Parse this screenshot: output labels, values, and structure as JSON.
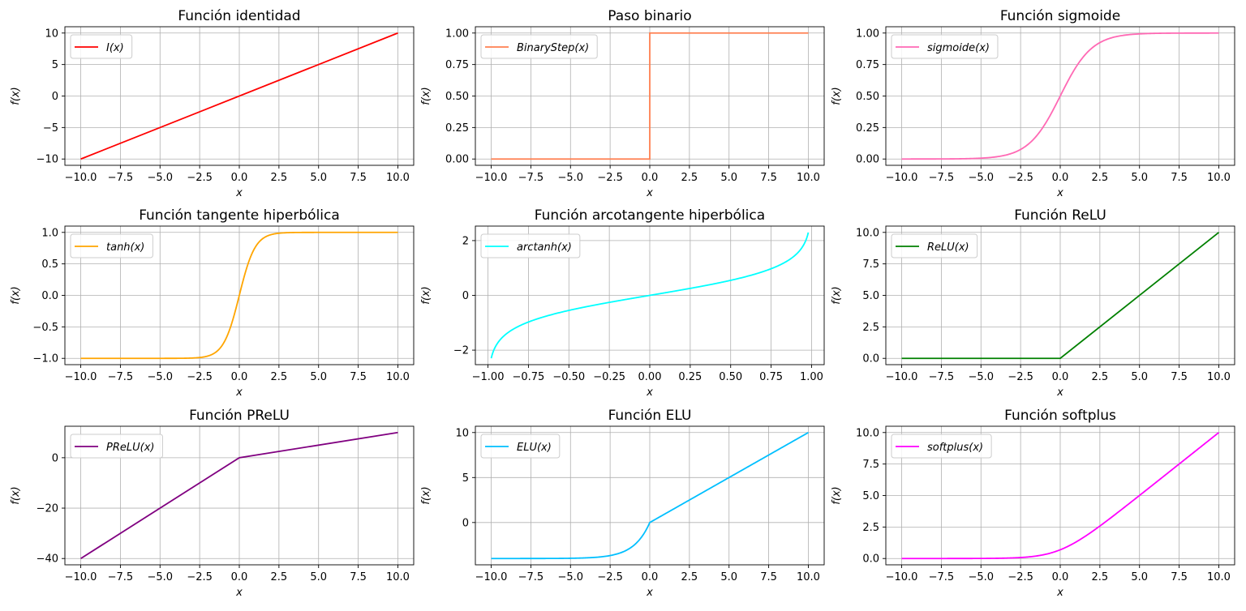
{
  "chart_data": [
    {
      "type": "line",
      "title": "Función identidad",
      "xlabel": "x",
      "ylabel": "f(x)",
      "legend": "I(x)",
      "legend_position": "top-left",
      "grid": true,
      "color": "#ff0000",
      "fn": "identity",
      "xlim": [
        -11,
        11
      ],
      "ylim": [
        -11,
        11
      ],
      "x": [
        -10,
        10
      ],
      "y": [
        -10,
        10
      ],
      "xticks": [
        -10,
        -7.5,
        -5,
        -2.5,
        0,
        2.5,
        5,
        7.5,
        10
      ],
      "xtick_labels": [
        "−10.0",
        "−7.5",
        "−5.0",
        "−2.5",
        "0.0",
        "2.5",
        "5.0",
        "7.5",
        "10.0"
      ],
      "yticks": [
        -10,
        -5,
        0,
        5,
        10
      ],
      "ytick_labels": [
        "−10",
        "−5",
        "0",
        "5",
        "10"
      ]
    },
    {
      "type": "line",
      "title": "Paso binario",
      "xlabel": "x",
      "ylabel": "f(x)",
      "legend": "BinaryStep(x)",
      "legend_position": "top-left",
      "grid": true,
      "color": "#ff7f50",
      "fn": "binarystep",
      "xlim": [
        -11,
        11
      ],
      "ylim": [
        -0.05,
        1.05
      ],
      "x": [
        -10,
        0,
        0,
        10
      ],
      "y": [
        0,
        0,
        1,
        1
      ],
      "xticks": [
        -10,
        -7.5,
        -5,
        -2.5,
        0,
        2.5,
        5,
        7.5,
        10
      ],
      "xtick_labels": [
        "−10.0",
        "−7.5",
        "−5.0",
        "−2.5",
        "0.0",
        "2.5",
        "5.0",
        "7.5",
        "10.0"
      ],
      "yticks": [
        0,
        0.25,
        0.5,
        0.75,
        1
      ],
      "ytick_labels": [
        "0.00",
        "0.25",
        "0.50",
        "0.75",
        "1.00"
      ]
    },
    {
      "type": "line",
      "title": "Función sigmoide",
      "xlabel": "x",
      "ylabel": "f(x)",
      "legend": "sigmoide(x)",
      "legend_position": "top-left",
      "grid": true,
      "color": "#ff69b4",
      "fn": "sigmoid",
      "xlim": [
        -11,
        11
      ],
      "ylim": [
        -0.05,
        1.05
      ],
      "x": [
        -10,
        -5,
        -2.5,
        0,
        2.5,
        5,
        10
      ],
      "y": [
        0,
        0.007,
        0.076,
        0.5,
        0.924,
        0.993,
        1
      ],
      "xticks": [
        -10,
        -7.5,
        -5,
        -2.5,
        0,
        2.5,
        5,
        7.5,
        10
      ],
      "xtick_labels": [
        "−10.0",
        "−7.5",
        "−5.0",
        "−2.5",
        "0.0",
        "2.5",
        "5.0",
        "7.5",
        "10.0"
      ],
      "yticks": [
        0,
        0.25,
        0.5,
        0.75,
        1
      ],
      "ytick_labels": [
        "0.00",
        "0.25",
        "0.50",
        "0.75",
        "1.00"
      ]
    },
    {
      "type": "line",
      "title": "Función tangente hiperbólica",
      "xlabel": "x",
      "ylabel": "f(x)",
      "legend": "tanh(x)",
      "legend_position": "top-left",
      "grid": true,
      "color": "#ffa500",
      "fn": "tanh",
      "xlim": [
        -11,
        11
      ],
      "ylim": [
        -1.1,
        1.1
      ],
      "x": [
        -10,
        -2.5,
        -1,
        0,
        1,
        2.5,
        10
      ],
      "y": [
        -1,
        -0.987,
        -0.762,
        0,
        0.762,
        0.987,
        1
      ],
      "xticks": [
        -10,
        -7.5,
        -5,
        -2.5,
        0,
        2.5,
        5,
        7.5,
        10
      ],
      "xtick_labels": [
        "−10.0",
        "−7.5",
        "−5.0",
        "−2.5",
        "0.0",
        "2.5",
        "5.0",
        "7.5",
        "10.0"
      ],
      "yticks": [
        -1,
        -0.5,
        0,
        0.5,
        1
      ],
      "ytick_labels": [
        "−1.0",
        "−0.5",
        "0.0",
        "0.5",
        "1.0"
      ]
    },
    {
      "type": "line",
      "title": "Función arcotangente hiperbólica",
      "xlabel": "x",
      "ylabel": "f(x)",
      "legend": "arctanh(x)",
      "legend_position": "top-left",
      "grid": true,
      "color": "#00ffff",
      "fn": "arctanh",
      "xlim": [
        -1.078,
        1.078
      ],
      "ylim": [
        -2.53,
        2.53
      ],
      "x": [
        -0.98,
        -0.75,
        -0.5,
        0,
        0.5,
        0.75,
        0.98
      ],
      "y": [
        -2.298,
        -0.973,
        -0.549,
        0,
        0.549,
        0.973,
        2.298
      ],
      "xticks": [
        -1,
        -0.75,
        -0.5,
        -0.25,
        0,
        0.25,
        0.5,
        0.75,
        1
      ],
      "xtick_labels": [
        "−1.00",
        "−0.75",
        "−0.50",
        "−0.25",
        "0.00",
        "0.25",
        "0.50",
        "0.75",
        "1.00"
      ],
      "yticks": [
        -2,
        0,
        2
      ],
      "ytick_labels": [
        "−2",
        "0",
        "2"
      ]
    },
    {
      "type": "line",
      "title": "Función ReLU",
      "xlabel": "x",
      "ylabel": "f(x)",
      "legend": "ReLU(x)",
      "legend_position": "top-left",
      "grid": true,
      "color": "#008000",
      "fn": "relu",
      "xlim": [
        -11,
        11
      ],
      "ylim": [
        -0.5,
        10.5
      ],
      "x": [
        -10,
        0,
        10
      ],
      "y": [
        0,
        0,
        10
      ],
      "xticks": [
        -10,
        -7.5,
        -5,
        -2.5,
        0,
        2.5,
        5,
        7.5,
        10
      ],
      "xtick_labels": [
        "−10.0",
        "−7.5",
        "−5.0",
        "−2.5",
        "0.0",
        "2.5",
        "5.0",
        "7.5",
        "10.0"
      ],
      "yticks": [
        0,
        2.5,
        5,
        7.5,
        10
      ],
      "ytick_labels": [
        "0.0",
        "2.5",
        "5.0",
        "7.5",
        "10.0"
      ]
    },
    {
      "type": "line",
      "title": "Función PReLU",
      "xlabel": "x",
      "ylabel": "f(x)",
      "legend": "PReLU(x)",
      "legend_position": "top-left",
      "grid": true,
      "color": "#800080",
      "fn": "prelu",
      "xlim": [
        -11,
        11
      ],
      "ylim": [
        -42.5,
        12.5
      ],
      "x": [
        -10,
        0,
        10
      ],
      "y": [
        -40,
        0,
        10
      ],
      "xticks": [
        -10,
        -7.5,
        -5,
        -2.5,
        0,
        2.5,
        5,
        7.5,
        10
      ],
      "xtick_labels": [
        "−10.0",
        "−7.5",
        "−5.0",
        "−2.5",
        "0.0",
        "2.5",
        "5.0",
        "7.5",
        "10.0"
      ],
      "yticks": [
        -40,
        -20,
        0
      ],
      "ytick_labels": [
        "−40",
        "−20",
        "0"
      ]
    },
    {
      "type": "line",
      "title": "Función ELU",
      "xlabel": "x",
      "ylabel": "f(x)",
      "legend": "ELU(x)",
      "legend_position": "top-left",
      "grid": true,
      "color": "#00bfff",
      "fn": "elu",
      "xlim": [
        -11,
        11
      ],
      "ylim": [
        -4.7,
        10.7
      ],
      "x": [
        -10,
        -5,
        -2.5,
        -1,
        0,
        10
      ],
      "y": [
        -4,
        -3.97,
        -3.67,
        -2.53,
        0,
        10
      ],
      "xticks": [
        -10,
        -7.5,
        -5,
        -2.5,
        0,
        2.5,
        5,
        7.5,
        10
      ],
      "xtick_labels": [
        "−10.0",
        "−7.5",
        "−5.0",
        "−2.5",
        "0.0",
        "2.5",
        "5.0",
        "7.5",
        "10.0"
      ],
      "yticks": [
        0,
        5,
        10
      ],
      "ytick_labels": [
        "0",
        "5",
        "10"
      ]
    },
    {
      "type": "line",
      "title": "Función softplus",
      "xlabel": "x",
      "ylabel": "f(x)",
      "legend": "softplus(x)",
      "legend_position": "top-left",
      "grid": true,
      "color": "#ff00ff",
      "fn": "softplus",
      "xlim": [
        -11,
        11
      ],
      "ylim": [
        -0.5,
        10.5
      ],
      "x": [
        -10,
        -2.5,
        0,
        2.5,
        5,
        10
      ],
      "y": [
        0,
        0.079,
        0.693,
        2.579,
        5.007,
        10
      ],
      "xticks": [
        -10,
        -7.5,
        -5,
        -2.5,
        0,
        2.5,
        5,
        7.5,
        10
      ],
      "xtick_labels": [
        "−10.0",
        "−7.5",
        "−5.0",
        "−2.5",
        "0.0",
        "2.5",
        "5.0",
        "7.5",
        "10.0"
      ],
      "yticks": [
        0,
        2.5,
        5,
        7.5,
        10
      ],
      "ytick_labels": [
        "0.0",
        "2.5",
        "5.0",
        "7.5",
        "10.0"
      ]
    }
  ]
}
